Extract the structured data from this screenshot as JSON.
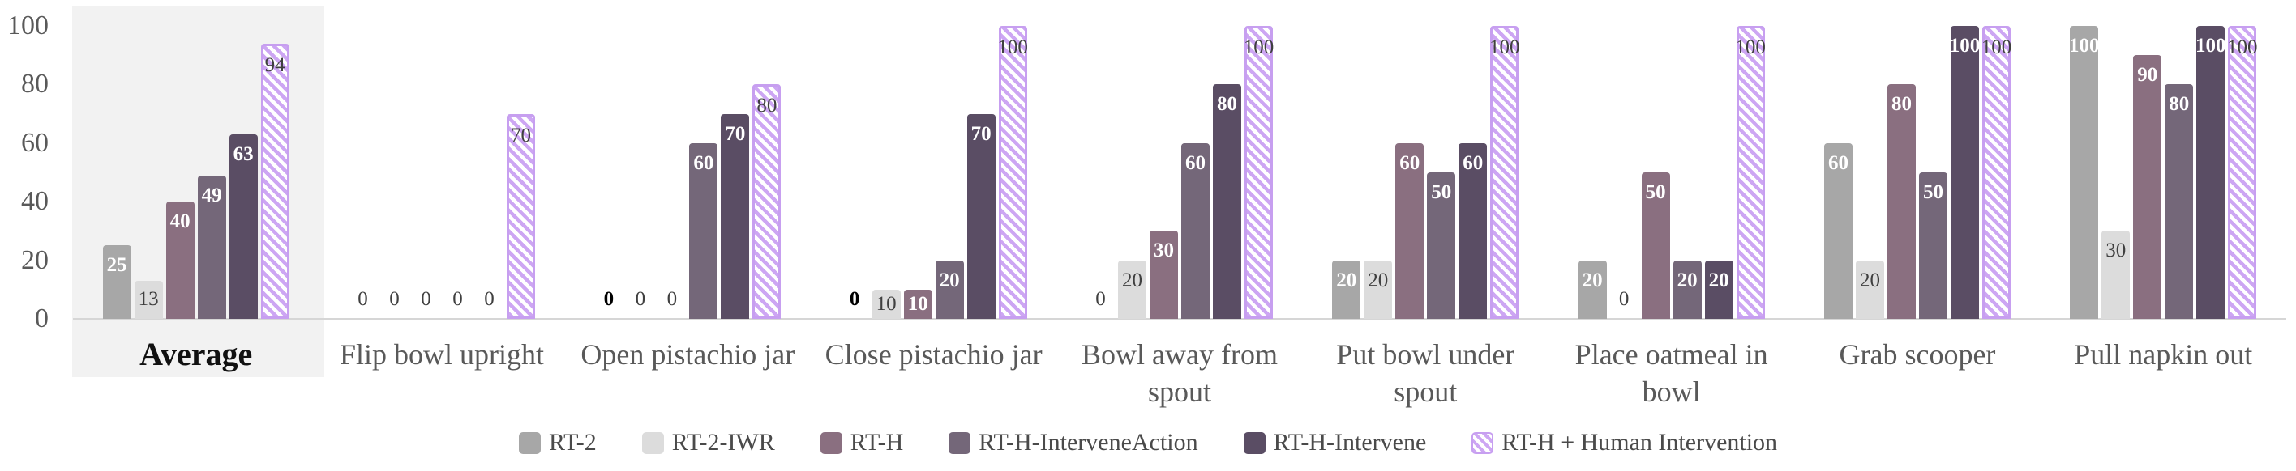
{
  "chart_data": {
    "type": "bar",
    "title": "",
    "xlabel": "",
    "ylabel": "",
    "ylim": [
      0,
      100
    ],
    "yticks": [
      0,
      20,
      40,
      60,
      80,
      100
    ],
    "grid": false,
    "legend_position": "bottom",
    "highlighted_category": "Average",
    "categories": [
      "Average",
      "Flip bowl upright",
      "Open pistachio jar",
      "Close pistachio jar",
      "Bowl away from spout",
      "Put bowl under spout",
      "Place oatmeal in bowl",
      "Grab scooper",
      "Pull napkin out"
    ],
    "series": [
      {
        "name": "RT-2",
        "color": "#a7a7a7",
        "hatched": false,
        "label_style": "white",
        "values": [
          25,
          0,
          0,
          0,
          0,
          20,
          20,
          60,
          100
        ]
      },
      {
        "name": "RT-2-IWR",
        "color": "#dcdcdc",
        "hatched": false,
        "label_style": "dark",
        "values": [
          13,
          0,
          0,
          10,
          20,
          20,
          0,
          20,
          30
        ]
      },
      {
        "name": "RT-H",
        "color": "#8a6f80",
        "hatched": false,
        "label_style": "white",
        "values": [
          40,
          0,
          0,
          10,
          30,
          60,
          50,
          80,
          90
        ]
      },
      {
        "name": "RT-H-InterveneAction",
        "color": "#746779",
        "hatched": false,
        "label_style": "white",
        "values": [
          49,
          0,
          60,
          20,
          60,
          50,
          20,
          50,
          80
        ]
      },
      {
        "name": "RT-H-Intervene",
        "color": "#5a4d64",
        "hatched": false,
        "label_style": "white",
        "values": [
          63,
          0,
          70,
          70,
          80,
          60,
          20,
          100,
          100
        ]
      },
      {
        "name": "RT-H + Human Intervention",
        "color": "#cda6f3",
        "hatched": true,
        "label_style": "dark",
        "values": [
          94,
          70,
          80,
          100,
          100,
          100,
          100,
          100,
          100
        ]
      }
    ],
    "emphasized_zero_labels": [
      {
        "series": "RT-2",
        "category": "Open pistachio jar"
      },
      {
        "series": "RT-2",
        "category": "Close pistachio jar"
      }
    ],
    "colors": {
      "axis_line": "#d6d6d6",
      "tick_label": "#595959",
      "category_label": "#595959",
      "highlight_panel": "#f2f2f2",
      "hatch_stripe": "#cda6f3",
      "hatch_border": "#c79ff0"
    }
  }
}
